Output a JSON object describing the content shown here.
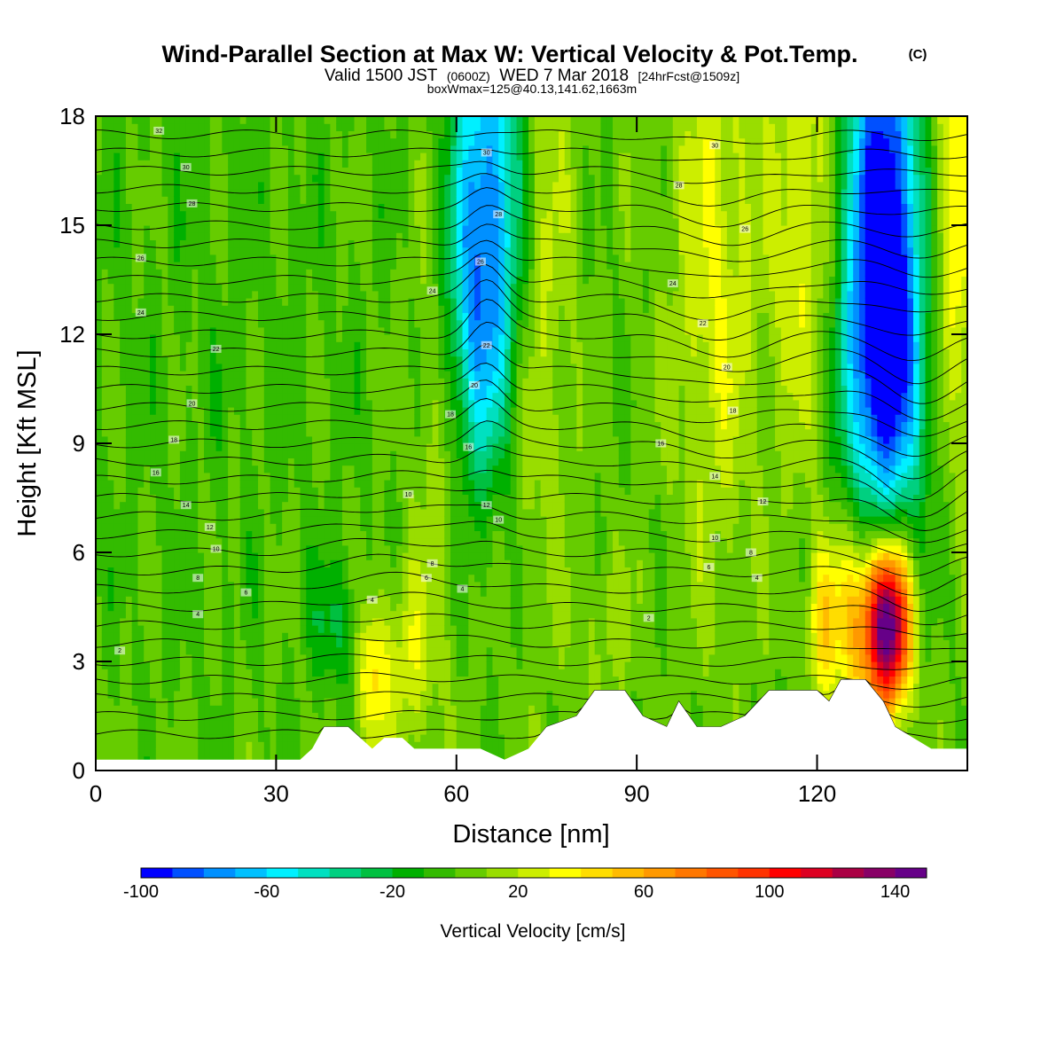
{
  "header": {
    "title": "Wind-Parallel Section at Max W: Vertical Velocity & Pot.Temp.",
    "copyright_tag": "(C)",
    "valid_prefix": "Valid 1500 JST",
    "valid_utc": "(0600Z)",
    "valid_date": "WED 7 Mar 2018",
    "forecast_info": "[24hrFcst@1509z]",
    "box_info": "boxWmax=125@40.13,141.62,1663m"
  },
  "chart_data": {
    "type": "heatmap",
    "title": "Wind-Parallel Section at Max W: Vertical Velocity & Pot.Temp.",
    "xlabel": "Distance [nm]",
    "ylabel": "Height [Kft MSL]",
    "xlim": [
      0,
      145
    ],
    "ylim": [
      0,
      18
    ],
    "x_ticks": [
      0,
      30,
      60,
      90,
      120
    ],
    "x_tick_labels": [
      "0",
      "30",
      "60",
      "90",
      "120"
    ],
    "y_ticks": [
      0,
      3,
      6,
      9,
      12,
      15,
      18
    ],
    "y_tick_labels": [
      "0",
      "3",
      "6",
      "9",
      "12",
      "15",
      "18"
    ],
    "colorbar": {
      "label": "Vertical Velocity [cm/s]",
      "min": -100,
      "max": 150,
      "step": 10,
      "tick_values": [
        -100,
        -60,
        -20,
        20,
        60,
        100,
        140
      ],
      "tick_labels": [
        "-100",
        "-60",
        "-20",
        "20",
        "60",
        "100",
        "140"
      ],
      "colors": [
        "#0000ff",
        "#0050ff",
        "#0090ff",
        "#00c0ff",
        "#00f0ff",
        "#00e0c0",
        "#00d080",
        "#00c040",
        "#00b000",
        "#33bb00",
        "#66cc00",
        "#99dd00",
        "#ccee00",
        "#ffff00",
        "#ffdd00",
        "#ffbb00",
        "#ff9900",
        "#ff7700",
        "#ff5500",
        "#ff3300",
        "#ff0000",
        "#dd0022",
        "#aa0044",
        "#880066",
        "#660088"
      ]
    },
    "terrain_kft": [
      [
        0,
        0.3
      ],
      [
        34,
        0.3
      ],
      [
        36,
        0.6
      ],
      [
        38,
        1.2
      ],
      [
        42,
        1.2
      ],
      [
        44,
        0.9
      ],
      [
        46,
        0.6
      ],
      [
        48,
        0.9
      ],
      [
        51,
        0.9
      ],
      [
        53,
        0.6
      ],
      [
        58,
        0.6
      ],
      [
        60,
        0.6
      ],
      [
        64,
        0.6
      ],
      [
        68,
        0.3
      ],
      [
        72,
        0.6
      ],
      [
        75,
        1.2
      ],
      [
        80,
        1.5
      ],
      [
        83,
        2.2
      ],
      [
        88,
        2.2
      ],
      [
        91,
        1.5
      ],
      [
        95,
        1.2
      ],
      [
        97,
        1.9
      ],
      [
        100,
        1.2
      ],
      [
        104,
        1.2
      ],
      [
        108,
        1.5
      ],
      [
        112,
        2.2
      ],
      [
        120,
        2.2
      ],
      [
        122,
        1.9
      ],
      [
        124,
        2.5
      ],
      [
        128,
        2.5
      ],
      [
        131,
        1.9
      ],
      [
        133,
        1.2
      ],
      [
        136,
        0.9
      ],
      [
        139,
        0.6
      ],
      [
        145,
        0.6
      ]
    ],
    "velocity_features": [
      {
        "x": 66,
        "z": 16.0,
        "sx": 5,
        "sz": 4.5,
        "w": -75
      },
      {
        "x": 63,
        "z": 12.0,
        "sx": 4,
        "sz": 3,
        "w": -35
      },
      {
        "x": 131,
        "z": 15.0,
        "sx": 4.5,
        "sz": 5,
        "w": -105
      },
      {
        "x": 131,
        "z": 10.5,
        "sx": 5,
        "sz": 3,
        "w": -45
      },
      {
        "x": 73,
        "z": 15.0,
        "sx": 4,
        "sz": 6,
        "w": 35
      },
      {
        "x": 103,
        "z": 14.0,
        "sx": 5,
        "sz": 6,
        "w": 28
      },
      {
        "x": 118,
        "z": 15.5,
        "sx": 4,
        "sz": 5,
        "w": 30
      },
      {
        "x": 143,
        "z": 16.0,
        "sx": 3,
        "sz": 5,
        "w": 40
      },
      {
        "x": 57,
        "z": 11.0,
        "sx": 3,
        "sz": 5,
        "w": 22
      },
      {
        "x": 132,
        "z": 4.0,
        "sx": 2.5,
        "sz": 1.6,
        "w": 148
      },
      {
        "x": 127,
        "z": 4.2,
        "sx": 3,
        "sz": 2,
        "w": 55
      },
      {
        "x": 121,
        "z": 4.0,
        "sx": 1.8,
        "sz": 1.6,
        "w": 38
      },
      {
        "x": 46,
        "z": 2.6,
        "sx": 1.8,
        "sz": 1.5,
        "w": 42
      },
      {
        "x": 52,
        "z": 3.0,
        "sx": 3,
        "sz": 1.8,
        "w": 25
      },
      {
        "x": 40,
        "z": 4.0,
        "sx": 3,
        "sz": 1.2,
        "w": -22
      },
      {
        "x": 85,
        "z": 4.0,
        "sx": 4,
        "sz": 1.5,
        "w": 12
      },
      {
        "x": 20,
        "z": 13.0,
        "sx": 25,
        "sz": 8,
        "w": -5
      }
    ],
    "theta_contour_labels": [
      {
        "x": 10.5,
        "z": 17.6,
        "label": "32"
      },
      {
        "x": 15,
        "z": 16.6,
        "label": "30"
      },
      {
        "x": 16,
        "z": 15.6,
        "label": "28"
      },
      {
        "x": 7.5,
        "z": 14.1,
        "label": "26"
      },
      {
        "x": 7.5,
        "z": 12.6,
        "label": "24"
      },
      {
        "x": 20,
        "z": 11.6,
        "label": "22"
      },
      {
        "x": 16,
        "z": 10.1,
        "label": "20"
      },
      {
        "x": 13,
        "z": 9.1,
        "label": "18"
      },
      {
        "x": 10,
        "z": 8.2,
        "label": "16"
      },
      {
        "x": 15,
        "z": 7.3,
        "label": "14"
      },
      {
        "x": 19,
        "z": 6.7,
        "label": "12"
      },
      {
        "x": 20,
        "z": 6.1,
        "label": "10"
      },
      {
        "x": 17,
        "z": 5.3,
        "label": "8"
      },
      {
        "x": 25,
        "z": 4.9,
        "label": "6"
      },
      {
        "x": 17,
        "z": 4.3,
        "label": "4"
      },
      {
        "x": 4,
        "z": 3.3,
        "label": "2"
      },
      {
        "x": 65,
        "z": 17.0,
        "label": "30"
      },
      {
        "x": 67,
        "z": 15.3,
        "label": "28"
      },
      {
        "x": 64,
        "z": 14.0,
        "label": "26"
      },
      {
        "x": 56,
        "z": 13.2,
        "label": "24"
      },
      {
        "x": 65,
        "z": 11.7,
        "label": "22"
      },
      {
        "x": 63,
        "z": 10.6,
        "label": "20"
      },
      {
        "x": 59,
        "z": 9.8,
        "label": "18"
      },
      {
        "x": 62,
        "z": 8.9,
        "label": "16"
      },
      {
        "x": 52,
        "z": 7.6,
        "label": "10"
      },
      {
        "x": 65,
        "z": 7.3,
        "label": "12"
      },
      {
        "x": 67,
        "z": 6.9,
        "label": "10"
      },
      {
        "x": 56,
        "z": 5.7,
        "label": "8"
      },
      {
        "x": 55,
        "z": 5.3,
        "label": "6"
      },
      {
        "x": 61,
        "z": 5.0,
        "label": "4"
      },
      {
        "x": 46,
        "z": 4.7,
        "label": "4"
      },
      {
        "x": 103,
        "z": 17.2,
        "label": "30"
      },
      {
        "x": 97,
        "z": 16.1,
        "label": "28"
      },
      {
        "x": 108,
        "z": 14.9,
        "label": "26"
      },
      {
        "x": 96,
        "z": 13.4,
        "label": "24"
      },
      {
        "x": 101,
        "z": 12.3,
        "label": "22"
      },
      {
        "x": 105,
        "z": 11.1,
        "label": "20"
      },
      {
        "x": 106,
        "z": 9.9,
        "label": "18"
      },
      {
        "x": 94,
        "z": 9.0,
        "label": "16"
      },
      {
        "x": 103,
        "z": 8.1,
        "label": "14"
      },
      {
        "x": 111,
        "z": 7.4,
        "label": "12"
      },
      {
        "x": 103,
        "z": 6.4,
        "label": "10"
      },
      {
        "x": 109,
        "z": 6.0,
        "label": "8"
      },
      {
        "x": 102,
        "z": 5.6,
        "label": "6"
      },
      {
        "x": 110,
        "z": 5.3,
        "label": "4"
      },
      {
        "x": 92,
        "z": 4.2,
        "label": "2"
      }
    ]
  }
}
